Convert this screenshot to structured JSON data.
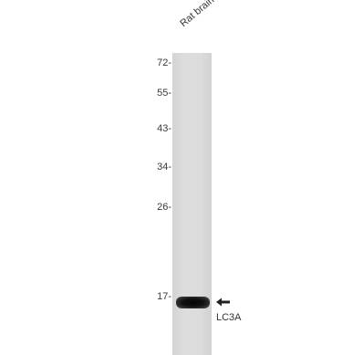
{
  "blot": {
    "sample_label": "Rat brain",
    "markers": [
      {
        "label": "72-"
      },
      {
        "label": "55-"
      },
      {
        "label": "43-"
      },
      {
        "label": "34-"
      },
      {
        "label": "26-"
      },
      {
        "label": "17-"
      }
    ],
    "target_label": "LC3A",
    "arrow_icon": "left-arrow-icon"
  }
}
